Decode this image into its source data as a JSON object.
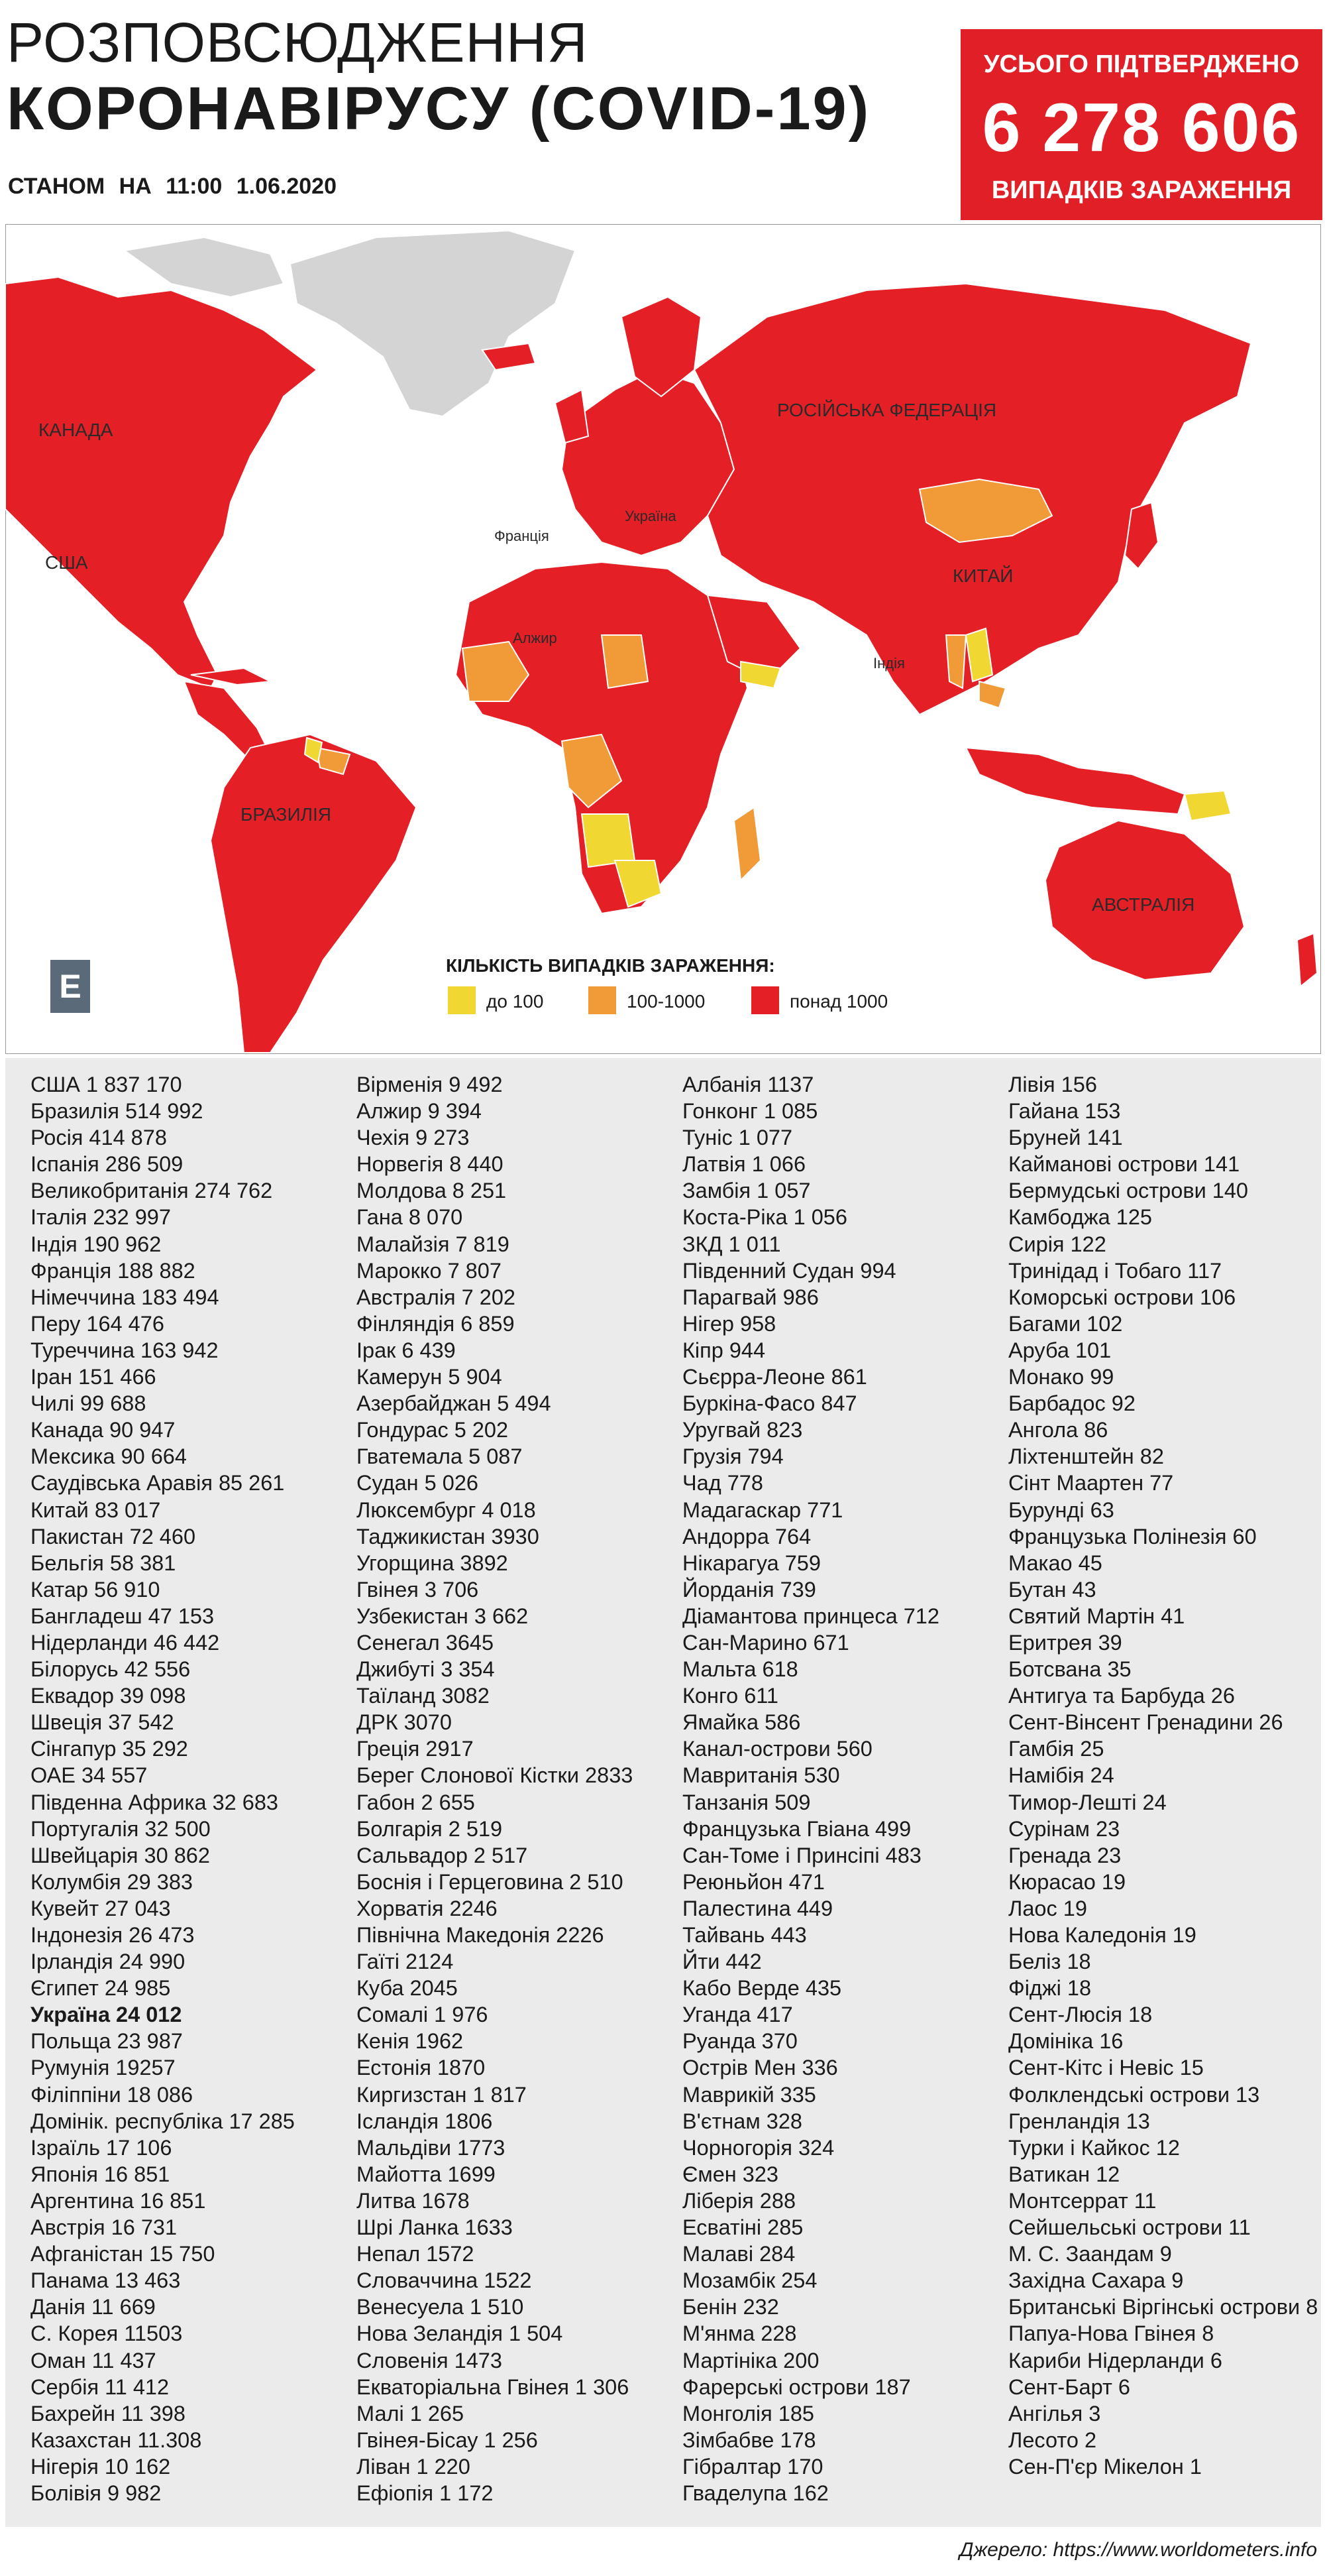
{
  "header": {
    "title_line1": "РОЗПОВСЮДЖЕННЯ",
    "title_line2": "КОРОНАВІРУСУ (COVID-19)",
    "date": "СТАНОМ НА 11:00 1.06.2020"
  },
  "total": {
    "label_top": "УСЬОГО ПІДТВЕРДЖЕНО",
    "value": "6 278 606",
    "label_bottom": "ВИПАДКІВ ЗАРАЖЕННЯ"
  },
  "map": {
    "labels": {
      "canada": "КАНАДА",
      "usa": "США",
      "brazil": "БРАЗИЛІЯ",
      "russia": "РОСІЙСЬКА ФЕДЕРАЦІЯ",
      "ukraine": "Україна",
      "france": "Франція",
      "algeria": "Алжир",
      "china": "КИТАЙ",
      "india": "Індія",
      "australia": "АВСТРАЛІЯ"
    },
    "logo_letter": "Е",
    "colors": {
      "ocean": "#ffffff",
      "no_data": "#d4d4d4",
      "low": "#f1d731",
      "mid": "#f19a38",
      "high": "#e41f26"
    },
    "legend": {
      "title": "КІЛЬКІСТЬ ВИПАДКІВ ЗАРАЖЕННЯ:",
      "items": [
        {
          "label": "до 100",
          "color": "#f1d731"
        },
        {
          "label": "100-1000",
          "color": "#f19a38"
        },
        {
          "label": "понад 1000",
          "color": "#e41f26"
        }
      ]
    }
  },
  "columns": [
    [
      "США 1 837 170",
      "Бразилія 514 992",
      "Росія 414 878",
      "Іспанія 286 509",
      "Великобританія 274 762",
      "Італія 232 997",
      "Індія 190 962",
      "Франція 188 882",
      "Німеччина 183 494",
      "Перу 164 476",
      "Туреччина 163 942",
      "Іран 151 466",
      "Чилі 99 688",
      "Канада 90 947",
      "Мексика 90 664",
      "Саудівська Аравія 85 261",
      "Китай 83 017",
      "Пакистан 72 460",
      "Бельгія 58 381",
      "Катар 56 910",
      "Бангладеш 47 153",
      "Нідерланди 46 442",
      "Білорусь 42 556",
      "Еквадор 39 098",
      "Швеція 37 542",
      "Сінгапур 35 292",
      "ОАЕ 34 557",
      "Південна Африка 32 683",
      "Португалія 32 500",
      "Швейцарія 30 862",
      "Колумбія 29 383",
      "Кувейт 27 043",
      "Індонезія 26 473",
      "Ірландія 24 990",
      "Єгипет 24 985",
      "Україна 24 012",
      "Польща 23 987",
      "Румунія 19257",
      "Філіппіни 18 086",
      "Домінік. республіка 17 285",
      "Ізраїль 17 106",
      "Японія 16 851",
      "Аргентина 16 851",
      "Австрія 16 731",
      "Афганістан 15 750",
      "Панама 13 463",
      "Данія 11 669",
      "С. Корея 11503",
      "Оман 11 437",
      "Сербія 11 412",
      "Бахрейн 11 398",
      "Казахстан 11.308",
      "Нігерія 10 162",
      "Болівія 9 982"
    ],
    [
      "Вірменія 9 492",
      "Алжир 9 394",
      "Чехія 9 273",
      "Норвегія 8 440",
      "Молдова 8 251",
      "Гана 8 070",
      "Малайзія 7 819",
      "Марокко 7 807",
      "Австралія 7 202",
      "Фінляндія 6 859",
      "Ірак 6 439",
      "Камерун 5 904",
      "Азербайджан 5 494",
      "Гондурас 5 202",
      "Гватемала 5 087",
      "Судан 5 026",
      "Люксембург 4 018",
      "Таджикистан 3930",
      "Угорщина 3892",
      "Гвінея 3 706",
      "Узбекистан 3 662",
      "Сенегал 3645",
      "Джибуті 3 354",
      "Таїланд 3082",
      "ДРК 3070",
      "Греція 2917",
      "Берег Слонової Кістки 2833",
      "Габон 2 655",
      "Болгарія 2 519",
      "Сальвадор 2 517",
      "Боснія і Герцеговина 2 510",
      "Хорватія 2246",
      "Північна Македонія 2226",
      "Гаїті 2124",
      "Куба 2045",
      "Сомалі 1 976",
      "Кенія 1962",
      "Естонія 1870",
      "Киргизстан 1 817",
      "Ісландія 1806",
      "Мальдіви 1773",
      "Майотта 1699",
      "Литва 1678",
      "Шрі Ланка 1633",
      "Непал 1572",
      "Словаччина 1522",
      "Венесуела 1 510",
      "Нова Зеландія 1 504",
      "Словенія 1473",
      "Екваторіальна Гвінея 1 306",
      "Малі 1 265",
      "Гвінея-Бісау 1 256",
      "Ліван 1 220",
      "Ефіопія 1 172"
    ],
    [
      "Албанія 1137",
      "Гонконг 1 085",
      "Туніс 1 077",
      "Латвія 1 066",
      "Замбія 1 057",
      "Коста-Ріка 1 056",
      "ЗКД 1 011",
      "Південний Судан 994",
      "Парагвай 986",
      "Нігер 958",
      "Кіпр 944",
      "Сьєрра-Леоне 861",
      "Буркіна-Фасо 847",
      "Уругвай 823",
      "Грузія 794",
      "Чад 778",
      "Мадагаскар 771",
      "Андорра 764",
      "Нікарагуа 759",
      "Йорданія 739",
      "Діамантова принцеса 712",
      "Сан-Марино 671",
      "Мальта 618",
      "Конго 611",
      "Ямайка 586",
      "Канал-острови 560",
      "Мавританія 530",
      "Танзанія 509",
      "Французька Гвіана 499",
      "Сан-Томе і Принсіпі 483",
      "Реюньйон 471",
      "Палестина 449",
      "Тайвань 443",
      "Йти 442",
      "Кабо Верде 435",
      "Уганда 417",
      "Руанда 370",
      "Острів Мен 336",
      "Маврикій 335",
      "В'єтнам 328",
      "Чорногорія 324",
      "Ємен 323",
      "Ліберія 288",
      "Есватіні 285",
      "Малаві 284",
      "Мозамбік 254",
      "Бенін 232",
      "М'янма 228",
      "Мартініка 200",
      "Фарерські острови 187",
      "Монголія 185",
      "Зімбабве 178",
      "Гібралтар 170",
      "Гваделупа 162"
    ],
    [
      "Лівія 156",
      "Гайана 153",
      "Бруней 141",
      "Кайманові острови 141",
      "Бермудські острови 140",
      "Камбоджа 125",
      "Сирія 122",
      "Тринідад і Тобаго 117",
      "Коморські острови 106",
      "Багами 102",
      "Аруба 101",
      "Монако 99",
      "Барбадос 92",
      "Ангола 86",
      "Ліхтенштейн 82",
      "Сінт Маартен 77",
      "Бурунді 63",
      "Французька Полінезія 60",
      "Макао 45",
      "Бутан 43",
      "Святий Мартін 41",
      "Еритрея 39",
      "Ботсвана 35",
      "Антигуа та Барбуда 26",
      "Сент-Вінсент Гренадини 26",
      "Гамбія 25",
      "Намібія 24",
      "Тимор-Лешті 24",
      "Сурінам 23",
      "Гренада 23",
      "Кюрасао 19",
      "Лаос 19",
      "Нова Каледонія 19",
      "Беліз 18",
      "Фіджі 18",
      "Сент-Люсія 18",
      "Домініка 16",
      "Сент-Кітс і Невіс 15",
      "Фолклендські острови 13",
      "Гренландія 13",
      "Турки і Кайкос 12",
      "Ватикан 12",
      "Монтсеррат 11",
      "Сейшельські острови 11",
      "М. С. Заандам 9",
      "Західна Сахара 9",
      "Британські Віргінські острови 8",
      "Папуа-Нова Гвінея 8",
      "Кариби Нідерланди 6",
      "Сент-Барт 6",
      "Ангілья 3",
      "Лесото 2",
      "Сен-П'єр Мікелон 1"
    ]
  ],
  "highlighted_entry": "Україна 24 012",
  "source": "Джерело: https://www.worldometers.info"
}
